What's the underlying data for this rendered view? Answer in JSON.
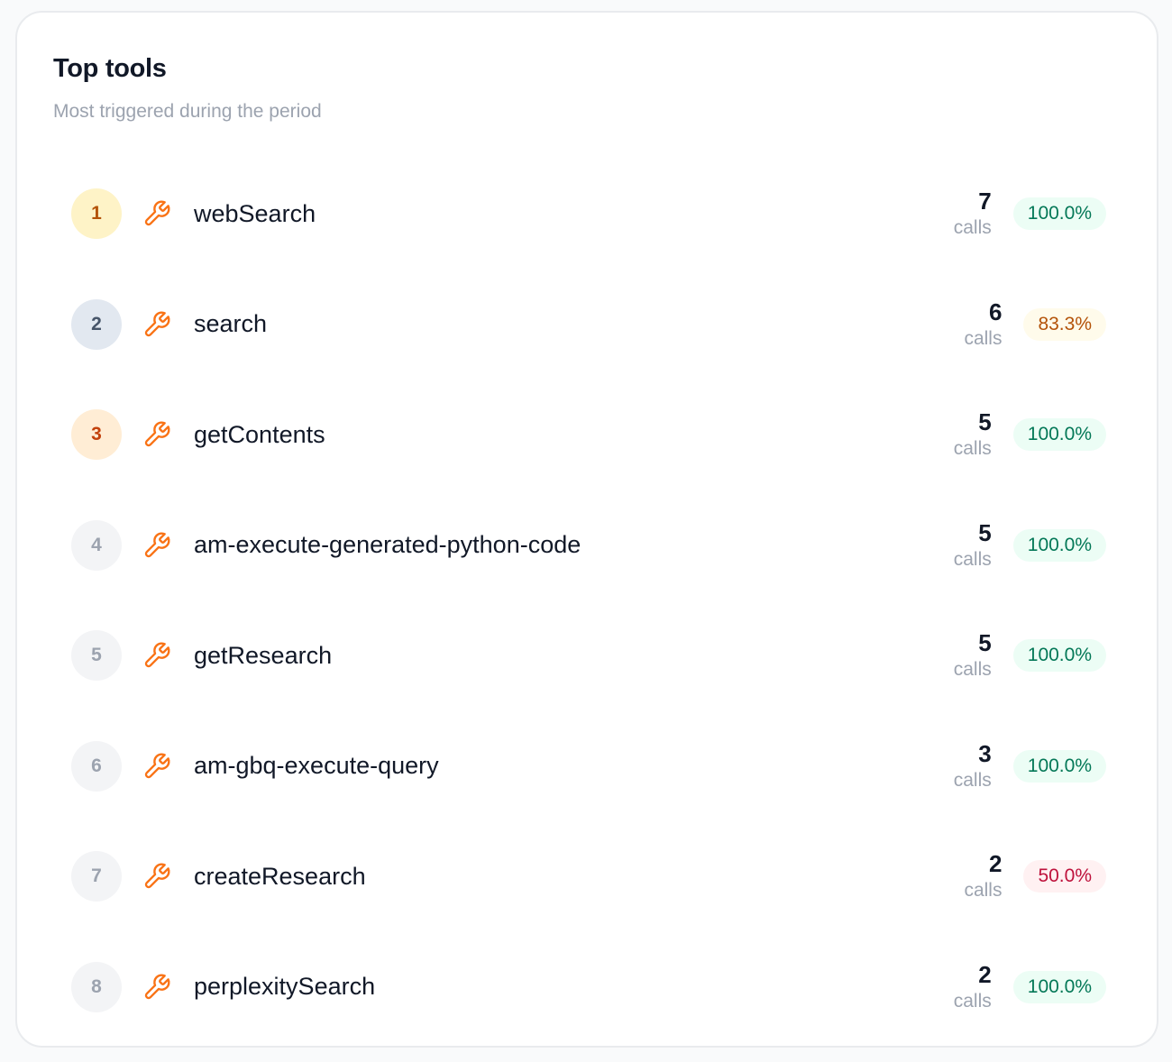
{
  "card": {
    "title": "Top tools",
    "subtitle": "Most triggered during the period"
  },
  "tools": [
    {
      "rank": "1",
      "name": "webSearch",
      "calls": "7",
      "calls_label": "calls",
      "rate": "100.0%",
      "rank_style": "gold",
      "rate_status": "good",
      "icon": "wrench-icon"
    },
    {
      "rank": "2",
      "name": "search",
      "calls": "6",
      "calls_label": "calls",
      "rate": "83.3%",
      "rank_style": "silver",
      "rate_status": "warn",
      "icon": "wrench-icon"
    },
    {
      "rank": "3",
      "name": "getContents",
      "calls": "5",
      "calls_label": "calls",
      "rate": "100.0%",
      "rank_style": "bronze",
      "rate_status": "good",
      "icon": "wrench-icon"
    },
    {
      "rank": "4",
      "name": "am-execute-generated-python-code",
      "calls": "5",
      "calls_label": "calls",
      "rate": "100.0%",
      "rank_style": "plain",
      "rate_status": "good",
      "icon": "wrench-icon"
    },
    {
      "rank": "5",
      "name": "getResearch",
      "calls": "5",
      "calls_label": "calls",
      "rate": "100.0%",
      "rank_style": "plain",
      "rate_status": "good",
      "icon": "wrench-icon"
    },
    {
      "rank": "6",
      "name": "am-gbq-execute-query",
      "calls": "3",
      "calls_label": "calls",
      "rate": "100.0%",
      "rank_style": "plain",
      "rate_status": "good",
      "icon": "wrench-icon"
    },
    {
      "rank": "7",
      "name": "createResearch",
      "calls": "2",
      "calls_label": "calls",
      "rate": "50.0%",
      "rank_style": "plain",
      "rate_status": "bad",
      "icon": "wrench-icon"
    },
    {
      "rank": "8",
      "name": "perplexitySearch",
      "calls": "2",
      "calls_label": "calls",
      "rate": "100.0%",
      "rank_style": "plain",
      "rate_status": "good",
      "icon": "wrench-icon"
    }
  ],
  "colors": {
    "icon_accent": "#f97316",
    "rate_good": "#047857",
    "rate_warn": "#b45309",
    "rate_bad": "#be123c"
  }
}
